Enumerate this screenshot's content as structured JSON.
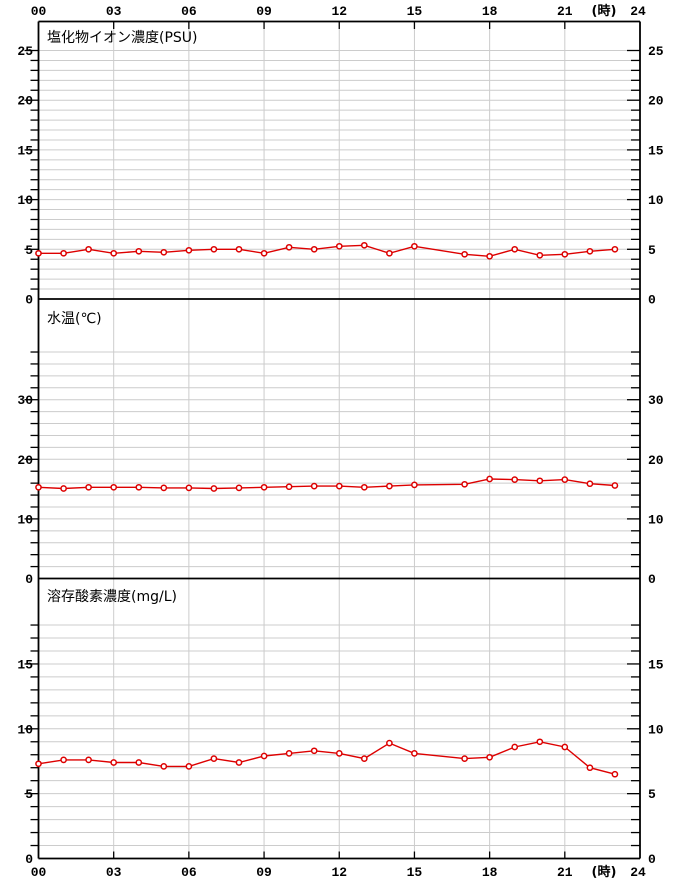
{
  "page": {
    "background": "#ffffff",
    "axis_color": "#000000",
    "grid_color": "#cccccc",
    "series_color": "#dd0000",
    "marker_fill": "#ffffff",
    "hour_axis": {
      "tick_hours": [
        0,
        3,
        6,
        9,
        12,
        15,
        18,
        21,
        24
      ],
      "tick_labels": [
        "00",
        "03",
        "06",
        "09",
        "12",
        "15",
        "18",
        "21",
        "24"
      ],
      "unit_label": "(時)",
      "hours_min": 0,
      "hours_max": 24
    }
  },
  "chart_data": [
    {
      "type": "line",
      "title": "塩化物イオン濃度(PSU)",
      "xlabel": "(時)",
      "ylabel": "",
      "x_hours": [
        0,
        1,
        2,
        3,
        4,
        5,
        6,
        7,
        8,
        9,
        10,
        11,
        12,
        13,
        14,
        15,
        16,
        17,
        18,
        19,
        20,
        21,
        22,
        23
      ],
      "values": [
        4.6,
        4.6,
        5.0,
        4.6,
        4.8,
        4.7,
        4.9,
        5.0,
        5.0,
        4.6,
        5.2,
        5.0,
        5.3,
        5.4,
        4.6,
        5.3,
        null,
        4.5,
        4.3,
        5.0,
        4.4,
        4.5,
        4.8,
        5.0
      ],
      "missing_hours": [
        16
      ],
      "yaxis": {
        "label_ticks": [
          0,
          5,
          10,
          15,
          20,
          25
        ],
        "minor_step": 1,
        "tick_max": 25,
        "ylim": [
          0,
          27.9
        ]
      },
      "grid": true,
      "legend": "none"
    },
    {
      "type": "line",
      "title": "水温(℃)",
      "xlabel": "(時)",
      "ylabel": "",
      "x_hours": [
        0,
        1,
        2,
        3,
        4,
        5,
        6,
        7,
        8,
        9,
        10,
        11,
        12,
        13,
        14,
        15,
        16,
        17,
        18,
        19,
        20,
        21,
        22,
        23
      ],
      "values": [
        15.3,
        15.1,
        15.3,
        15.3,
        15.3,
        15.2,
        15.2,
        15.1,
        15.2,
        15.3,
        15.4,
        15.5,
        15.5,
        15.3,
        15.5,
        15.7,
        null,
        15.8,
        16.7,
        16.6,
        16.4,
        16.6,
        15.9,
        15.6
      ],
      "missing_hours": [
        16
      ],
      "yaxis": {
        "label_ticks": [
          0,
          10,
          20,
          30
        ],
        "minor_step": 2,
        "tick_max": 38,
        "ylim": [
          0,
          46.9
        ]
      },
      "grid": true,
      "legend": "none"
    },
    {
      "type": "line",
      "title": "溶存酸素濃度(mg/L)",
      "xlabel": "(時)",
      "ylabel": "",
      "x_hours": [
        0,
        1,
        2,
        3,
        4,
        5,
        6,
        7,
        8,
        9,
        10,
        11,
        12,
        13,
        14,
        15,
        16,
        17,
        18,
        19,
        20,
        21,
        22,
        23
      ],
      "values": [
        7.3,
        7.6,
        7.6,
        7.4,
        7.4,
        7.1,
        7.1,
        7.7,
        7.4,
        7.9,
        8.1,
        8.3,
        8.1,
        7.7,
        8.9,
        8.1,
        null,
        7.7,
        7.8,
        8.6,
        9.0,
        8.6,
        7.0,
        6.5
      ],
      "missing_hours": [
        16
      ],
      "yaxis": {
        "label_ticks": [
          0,
          5,
          10,
          15
        ],
        "minor_step": 1,
        "tick_max": 18,
        "ylim": [
          0,
          21.6
        ]
      },
      "grid": true,
      "legend": "none"
    }
  ]
}
